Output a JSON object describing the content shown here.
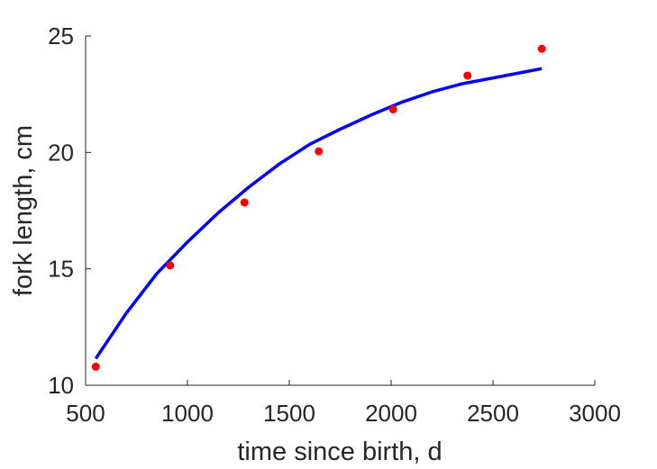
{
  "chart_data": {
    "type": "scatter",
    "xlabel": "time since birth, d",
    "ylabel": "fork length, cm",
    "xlim": [
      500,
      3000
    ],
    "ylim": [
      10,
      25
    ],
    "xticks": [
      500,
      1000,
      1500,
      2000,
      2500,
      3000
    ],
    "yticks": [
      10,
      15,
      20,
      25
    ],
    "xtick_labels": [
      "500",
      "1000",
      "1500",
      "2000",
      "2500",
      "3000"
    ],
    "ytick_labels": [
      "10",
      "15",
      "20",
      "25"
    ],
    "grid": false,
    "box": "left-bottom",
    "series": [
      {
        "kind": "points",
        "color": "#ff0000",
        "x": [
          550,
          915,
          1280,
          1645,
          2010,
          2375,
          2740
        ],
        "y": [
          10.8,
          15.15,
          17.85,
          20.05,
          21.85,
          23.3,
          24.45
        ]
      },
      {
        "kind": "fitted-curve",
        "color": "#0000ff",
        "x": [
          550,
          700,
          850,
          1000,
          1150,
          1300,
          1450,
          1600,
          1750,
          1900,
          2050,
          2200,
          2350,
          2500,
          2650,
          2740
        ],
        "y": [
          11.15,
          13.1,
          14.8,
          16.15,
          17.4,
          18.5,
          19.5,
          20.35,
          21.0,
          21.6,
          22.15,
          22.6,
          22.95,
          23.2,
          23.45,
          23.6
        ]
      }
    ]
  }
}
